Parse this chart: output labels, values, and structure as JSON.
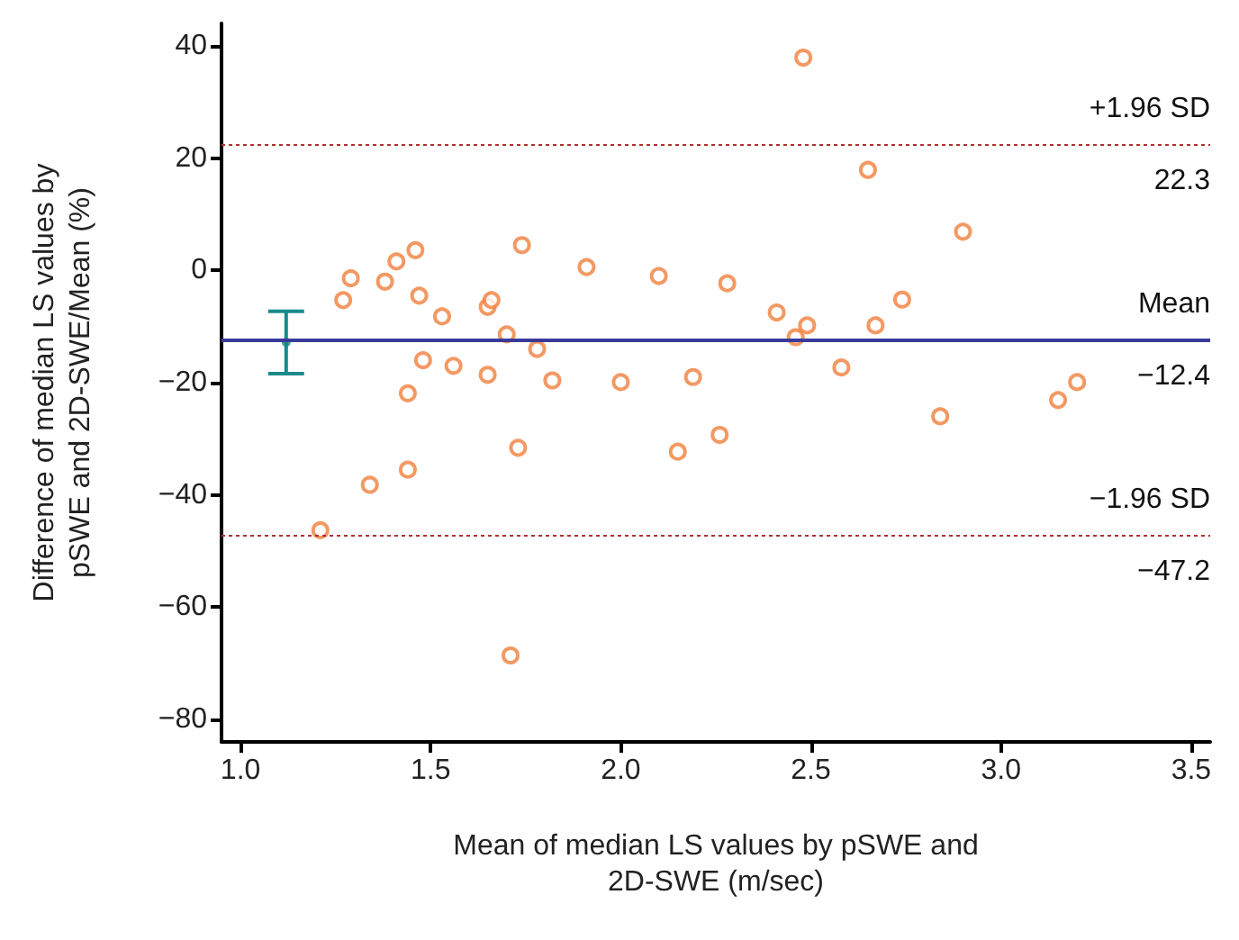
{
  "chart_data": {
    "type": "scatter",
    "xlabel": "Mean of median LS values by pSWE and 2D-SWE (m/sec)",
    "ylabel": "Difference of median LS values by pSWE and 2D-SWE/Mean (%)",
    "xlim": [
      0.95,
      3.55
    ],
    "xticks": [
      {
        "value": 1,
        "label": "1.0"
      },
      1.5,
      {
        "value": 2,
        "label": "2.0"
      },
      2.5,
      {
        "value": 3,
        "label": "3.0"
      },
      3.5
    ],
    "ylim": [
      -84,
      44
    ],
    "yticks": [
      -80,
      -60,
      -40,
      -20,
      0,
      20,
      40
    ],
    "grid": false,
    "marker": "circle",
    "series": [
      {
        "color": "#f07f3c",
        "x": [
          1.21,
          1.27,
          1.29,
          1.34,
          1.38,
          1.41,
          1.46,
          1.47,
          1.44,
          1.48,
          1.44,
          1.53,
          1.56,
          1.65,
          1.65,
          1.66,
          1.7,
          1.74,
          1.78,
          1.73,
          1.71,
          1.82,
          1.91,
          2.0,
          2.1,
          2.19,
          2.15,
          2.28,
          2.26,
          2.41,
          2.46,
          2.49,
          2.48,
          2.58,
          2.65,
          2.67,
          2.74,
          2.84,
          2.9,
          3.15,
          3.2
        ],
        "values": [
          -46.3,
          -5.3,
          -1.4,
          -38.2,
          -2.0,
          1.6,
          3.6,
          -4.5,
          -21.9,
          -16.0,
          -35.5,
          -8.2,
          -17.0,
          -18.6,
          -6.5,
          -5.3,
          -11.4,
          4.5,
          -14.0,
          -31.6,
          -68.6,
          -19.6,
          0.6,
          -19.9,
          -1.0,
          -19.0,
          -32.3,
          -2.3,
          -29.3,
          -7.5,
          -11.9,
          -9.8,
          37.9,
          -17.3,
          17.9,
          -9.8,
          -5.2,
          -26.0,
          6.9,
          -23.1,
          -19.9
        ]
      },
      {
        "type": "scatter",
        "color": "#1a8a8a",
        "x": [
          1.12
        ],
        "values": [
          -12.8
        ],
        "errors": [
          [
            -18.4,
            -7.3
          ]
        ]
      }
    ],
    "ref_lines": [
      {
        "axis": "y",
        "value": 22.3,
        "label": "+1.96 SD",
        "color": "#b03030",
        "line_style": "dotted"
      },
      {
        "axis": "y",
        "value": -12.4,
        "label": "Mean",
        "color": "#3a3a9a",
        "line_style": "solid"
      },
      {
        "axis": "y",
        "value": -47.2,
        "label": "−1.96 SD",
        "color": "#b03030",
        "line_style": "dotted"
      }
    ],
    "annotations": [
      "22.3",
      "−12.4",
      "−47.2"
    ]
  }
}
